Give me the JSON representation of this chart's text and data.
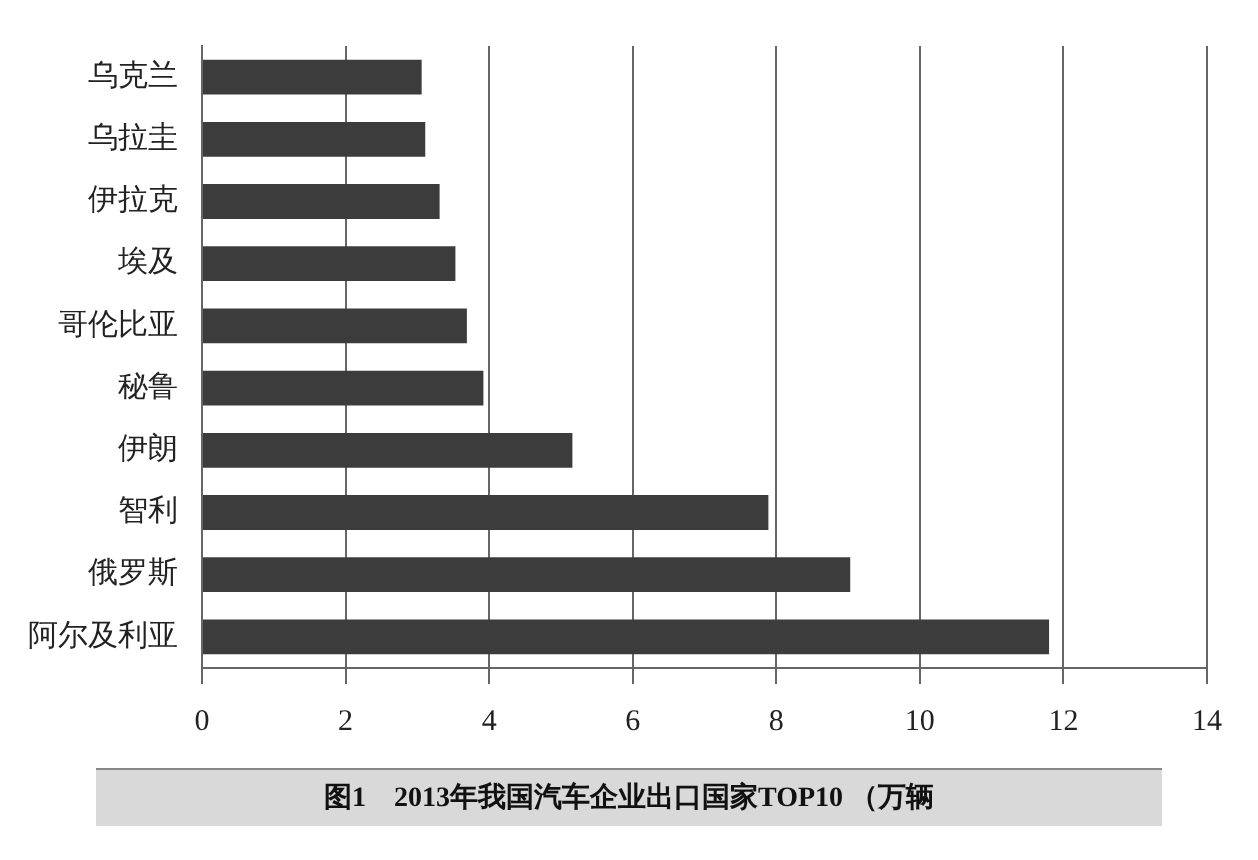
{
  "chart_data": {
    "type": "bar",
    "orientation": "horizontal",
    "title": "图1　2013年我国汽车企业出口国家TOP10 （万辆",
    "categories": [
      "乌克兰",
      "乌拉圭",
      "伊拉克",
      "埃及",
      "哥伦比亚",
      "秘鲁",
      "伊朗",
      "智利",
      "俄罗斯",
      "阿尔及利亚"
    ],
    "values": [
      3.06,
      3.11,
      3.31,
      3.53,
      3.69,
      3.92,
      5.16,
      7.89,
      9.03,
      11.8
    ],
    "color": "#3c3c3c",
    "xlim": [
      0,
      14
    ],
    "xticks": [
      0,
      2,
      4,
      6,
      8,
      10,
      12,
      14
    ],
    "grid": "x",
    "legend": false
  }
}
